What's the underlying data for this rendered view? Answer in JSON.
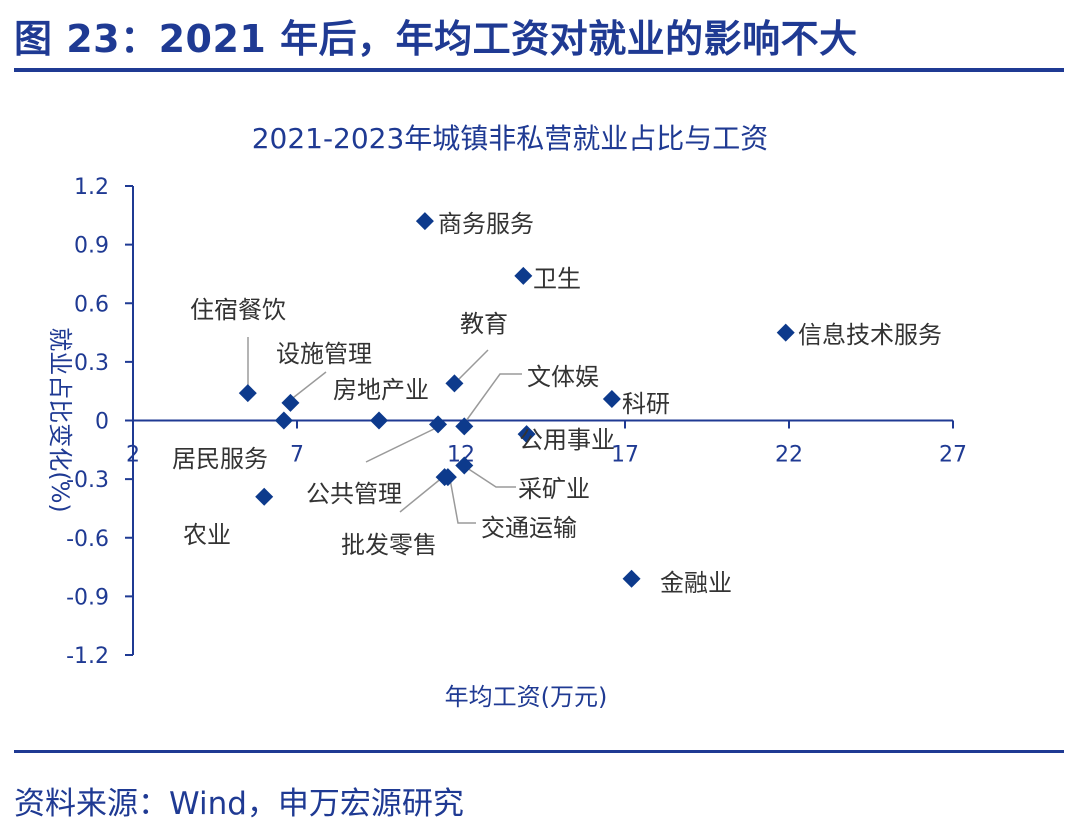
{
  "figure_title": "图 23：2021 年后，年均工资对就业的影响不大",
  "source": "资料来源：Wind，申万宏源研究",
  "colors": {
    "accent": "#1f3a93",
    "marker": "#0d3a8c",
    "leader": "#9a9a9a",
    "label": "#333333"
  },
  "chart_data": {
    "type": "scatter",
    "title": "2021-2023年城镇非私营就业占比与工资",
    "xlabel": "年均工资(万元)",
    "ylabel": "就业占比变化(%)",
    "xlim": [
      2,
      27
    ],
    "ylim": [
      -1.2,
      1.2
    ],
    "x_ticks": [
      "2",
      "7",
      "12",
      "17",
      "22",
      "27"
    ],
    "y_ticks": [
      "1.2",
      "0.9",
      "0.6",
      "0.3",
      "0",
      "-0.3",
      "-0.6",
      "-0.9",
      "-1.2"
    ],
    "grid": false,
    "points": [
      {
        "name": "商务服务",
        "x": 10.9,
        "y": 1.02
      },
      {
        "name": "卫生",
        "x": 13.9,
        "y": 0.74
      },
      {
        "name": "信息技术服务",
        "x": 21.9,
        "y": 0.45
      },
      {
        "name": "住宿餐饮",
        "x": 5.5,
        "y": 0.14
      },
      {
        "name": "设施管理",
        "x": 6.8,
        "y": 0.09
      },
      {
        "name": "教育",
        "x": 11.8,
        "y": 0.19
      },
      {
        "name": "文体娱",
        "x": 12.1,
        "y": -0.03
      },
      {
        "name": "科研",
        "x": 16.6,
        "y": 0.11
      },
      {
        "name": "房地产业",
        "x": 9.5,
        "y": 0.0
      },
      {
        "name": "居民服务",
        "x": 6.6,
        "y": 0.0
      },
      {
        "name": "公共管理",
        "x": 11.3,
        "y": -0.02
      },
      {
        "name": "公用事业",
        "x": 14.0,
        "y": -0.07
      },
      {
        "name": "采矿业",
        "x": 12.1,
        "y": -0.23
      },
      {
        "name": "交通运输",
        "x": 11.6,
        "y": -0.29
      },
      {
        "name": "批发零售",
        "x": 11.5,
        "y": -0.29
      },
      {
        "name": "农业",
        "x": 6.0,
        "y": -0.39
      },
      {
        "name": "金融业",
        "x": 17.2,
        "y": -0.81
      }
    ]
  }
}
